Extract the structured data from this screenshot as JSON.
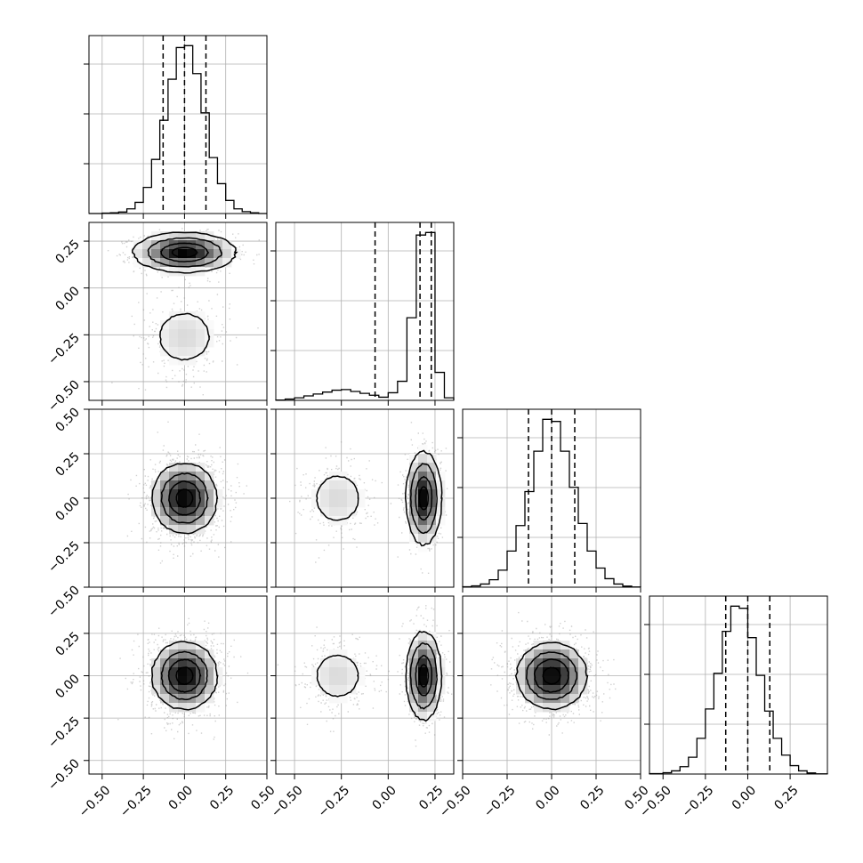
{
  "figure": {
    "background": "#ffffff",
    "axes_color": "#000000",
    "grid_color": "#b0b0b0",
    "density_color": "#000000"
  },
  "chart_data": {
    "type": "corner",
    "n_params": 4,
    "grid": true,
    "parameter_labels": [
      "",
      "",
      "",
      ""
    ],
    "ranges": [
      [
        -0.58,
        0.5
      ],
      [
        -0.6,
        0.35
      ],
      [
        -0.5,
        0.5
      ],
      [
        -0.58,
        0.47
      ]
    ],
    "ticks": [
      [
        -0.5,
        -0.25,
        0.0,
        0.25,
        0.5
      ],
      [
        -0.5,
        -0.25,
        0.0,
        0.25
      ],
      [
        -0.5,
        -0.25,
        0.0,
        0.25,
        0.5
      ],
      [
        -0.5,
        -0.25,
        0.0,
        0.25
      ]
    ],
    "tick_labels": [
      [
        "−0.50",
        "−0.25",
        "0.00",
        "0.25",
        "0.50"
      ],
      [
        "−0.50",
        "−0.25",
        "0.00",
        "0.25"
      ],
      [
        "−0.50",
        "−0.25",
        "0.00",
        "0.25",
        "0.50"
      ],
      [
        "−0.50",
        "−0.25",
        "0.00",
        "0.25"
      ]
    ],
    "quantiles": [
      [
        -0.13,
        0.0,
        0.13
      ],
      [
        -0.07,
        0.17,
        0.23
      ],
      [
        -0.13,
        0.0,
        0.13
      ],
      [
        -0.13,
        0.0,
        0.13
      ]
    ],
    "marginals": [
      {
        "type": "histogram",
        "bin_edges": [
          -0.58,
          -0.5,
          -0.45,
          -0.4,
          -0.35,
          -0.3,
          -0.25,
          -0.2,
          -0.15,
          -0.1,
          -0.05,
          0.0,
          0.05,
          0.1,
          0.15,
          0.2,
          0.25,
          0.3,
          0.35,
          0.4,
          0.45,
          0.5
        ],
        "counts": [
          0,
          2,
          4,
          8,
          25,
          60,
          140,
          290,
          500,
          720,
          890,
          900,
          750,
          540,
          300,
          160,
          70,
          25,
          10,
          4,
          0
        ]
      },
      {
        "type": "histogram",
        "bin_edges": [
          -0.6,
          -0.55,
          -0.5,
          -0.45,
          -0.4,
          -0.35,
          -0.3,
          -0.25,
          -0.2,
          -0.15,
          -0.1,
          -0.05,
          0.0,
          0.05,
          0.1,
          0.15,
          0.2,
          0.25,
          0.3,
          0.35
        ],
        "counts": [
          2,
          10,
          20,
          35,
          50,
          65,
          80,
          85,
          70,
          55,
          40,
          25,
          60,
          150,
          650,
          1300,
          1320,
          220,
          20
        ]
      },
      {
        "type": "histogram",
        "bin_edges": [
          -0.5,
          -0.45,
          -0.4,
          -0.35,
          -0.3,
          -0.25,
          -0.2,
          -0.15,
          -0.1,
          -0.05,
          0.0,
          0.05,
          0.1,
          0.15,
          0.2,
          0.25,
          0.3,
          0.35,
          0.4,
          0.45,
          0.5
        ],
        "counts": [
          2,
          6,
          15,
          35,
          80,
          170,
          290,
          450,
          640,
          790,
          780,
          640,
          470,
          300,
          170,
          90,
          40,
          15,
          5,
          1
        ]
      },
      {
        "type": "histogram",
        "bin_edges": [
          -0.58,
          -0.5,
          -0.45,
          -0.4,
          -0.35,
          -0.3,
          -0.25,
          -0.2,
          -0.15,
          -0.1,
          -0.05,
          0.0,
          0.05,
          0.1,
          0.15,
          0.2,
          0.25,
          0.3,
          0.35,
          0.4,
          0.47
        ],
        "counts": [
          2,
          6,
          15,
          35,
          80,
          170,
          310,
          480,
          680,
          800,
          790,
          650,
          470,
          300,
          170,
          90,
          40,
          15,
          5,
          1
        ]
      }
    ],
    "pairs": [
      {
        "row": 1,
        "col": 0,
        "type": "2d_density",
        "modes": [
          {
            "center": [
              0.0,
              0.19
            ],
            "sigma": [
              0.13,
              0.045
            ],
            "weight": 0.8
          },
          {
            "center": [
              0.0,
              -0.26
            ],
            "sigma": [
              0.12,
              0.1
            ],
            "weight": 0.2
          }
        ]
      },
      {
        "row": 2,
        "col": 0,
        "type": "2d_density",
        "modes": [
          {
            "center": [
              0.0,
              0.0
            ],
            "sigma": [
              0.1,
              0.1
            ],
            "weight": 1.0
          }
        ]
      },
      {
        "row": 2,
        "col": 1,
        "type": "2d_density",
        "modes": [
          {
            "center": [
              0.19,
              0.0
            ],
            "sigma": [
              0.04,
              0.11
            ],
            "weight": 0.8
          },
          {
            "center": [
              -0.27,
              0.0
            ],
            "sigma": [
              0.09,
              0.1
            ],
            "weight": 0.2
          }
        ]
      },
      {
        "row": 3,
        "col": 0,
        "type": "2d_density",
        "modes": [
          {
            "center": [
              0.0,
              0.0
            ],
            "sigma": [
              0.1,
              0.1
            ],
            "weight": 1.0
          }
        ]
      },
      {
        "row": 3,
        "col": 1,
        "type": "2d_density",
        "modes": [
          {
            "center": [
              0.19,
              0.0
            ],
            "sigma": [
              0.04,
              0.11
            ],
            "weight": 0.8
          },
          {
            "center": [
              -0.27,
              0.0
            ],
            "sigma": [
              0.09,
              0.1
            ],
            "weight": 0.2
          }
        ]
      },
      {
        "row": 3,
        "col": 2,
        "type": "2d_density",
        "modes": [
          {
            "center": [
              0.0,
              0.0
            ],
            "sigma": [
              0.1,
              0.1
            ],
            "weight": 1.0
          }
        ]
      }
    ]
  }
}
